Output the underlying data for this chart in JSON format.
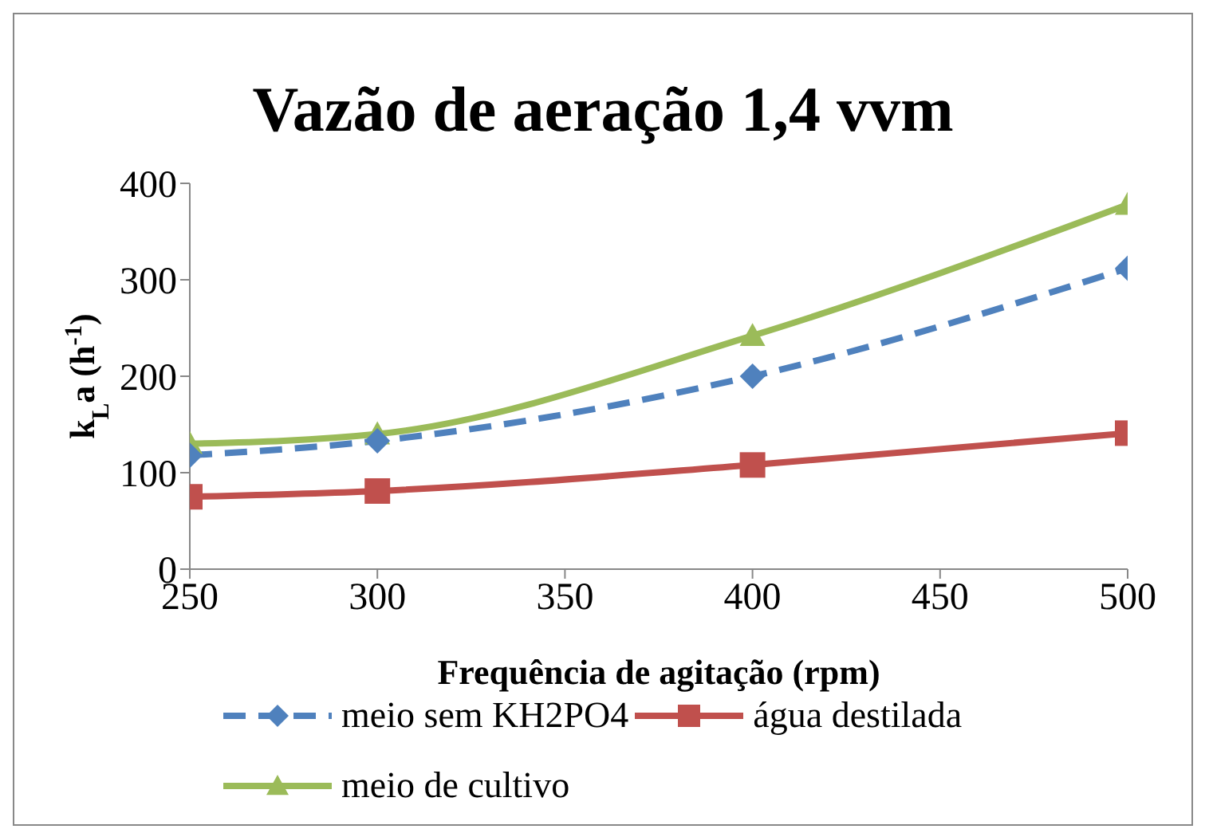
{
  "chart_data": {
    "type": "line",
    "title": "Vazão de aeração 1,4 vvm",
    "xlabel": "Frequência de agitação (rpm)",
    "ylabel": "k$_{L}$a (h$^{-1}$)",
    "x": [
      250,
      300,
      400,
      500
    ],
    "xlim": [
      250,
      500
    ],
    "xticks": [
      250,
      300,
      350,
      400,
      450,
      500
    ],
    "ylim": [
      0,
      400
    ],
    "yticks": [
      0,
      100,
      200,
      300,
      400
    ],
    "grid": false,
    "legend": "bottom",
    "series": [
      {
        "name": "meio sem KH2PO4",
        "color": "#4f81bd",
        "marker": "diamond",
        "line_style": "dashed",
        "values": [
          118,
          133,
          200,
          312
        ]
      },
      {
        "name": "água destilada",
        "color": "#c0504d",
        "marker": "square",
        "line_style": "solid",
        "values": [
          75,
          81,
          108,
          141
        ]
      },
      {
        "name": "meio de cultivo",
        "color": "#9bbb59",
        "marker": "triangle",
        "line_style": "solid",
        "values": [
          130,
          140,
          242,
          378
        ]
      }
    ]
  }
}
